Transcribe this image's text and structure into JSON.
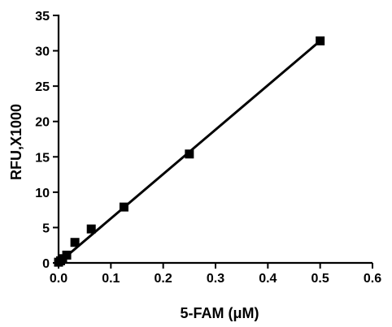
{
  "chart_data": {
    "type": "scatter",
    "xlabel": "5-FAM (μM)",
    "ylabel": "RFU,X1000",
    "xlim": [
      0,
      0.6
    ],
    "ylim": [
      0,
      35
    ],
    "x_ticks": [
      0.0,
      0.1,
      0.2,
      0.3,
      0.4,
      0.5,
      0.6
    ],
    "x_tick_labels": [
      "0.0",
      "0.1",
      "0.2",
      "0.3",
      "0.4",
      "0.5",
      "0.6"
    ],
    "y_ticks": [
      0,
      5,
      10,
      15,
      20,
      25,
      30,
      35
    ],
    "y_tick_labels": [
      "0",
      "5",
      "10",
      "15",
      "20",
      "25",
      "30",
      "35"
    ],
    "grid": false,
    "marker": "square",
    "series": [
      {
        "x": [
          0.0,
          0.0039,
          0.0078,
          0.0156,
          0.03125,
          0.0625,
          0.125,
          0.25,
          0.5
        ],
        "y": [
          0.1,
          0.3,
          0.6,
          1.1,
          2.9,
          4.8,
          7.9,
          15.4,
          31.4
        ]
      }
    ],
    "fit_line": {
      "x": [
        0.0,
        0.5
      ],
      "y": [
        0.0,
        31.4
      ]
    }
  }
}
